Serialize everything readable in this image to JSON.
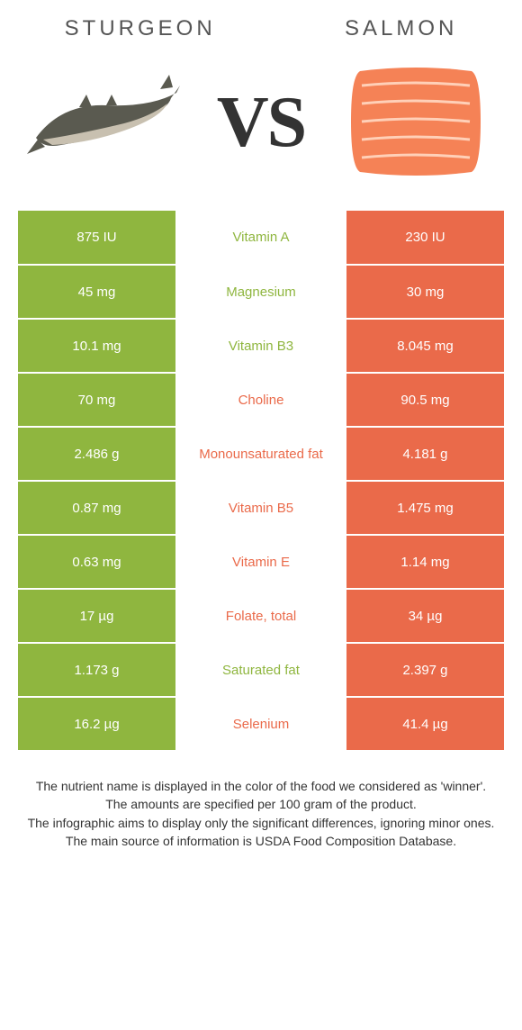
{
  "left_food": {
    "title": "STURGEON",
    "color": "#8fb63f"
  },
  "right_food": {
    "title": "SALMON",
    "color": "#ea6a4a"
  },
  "vs_label_v": "V",
  "vs_label_s": "S",
  "label_color_left": "#8fb63f",
  "label_color_right": "#ea6a4a",
  "row_text_color": "#ffffff",
  "rows": [
    {
      "left": "875 IU",
      "label": "Vitamin A",
      "right": "230 IU",
      "winner": "left"
    },
    {
      "left": "45 mg",
      "label": "Magnesium",
      "right": "30 mg",
      "winner": "left"
    },
    {
      "left": "10.1 mg",
      "label": "Vitamin B3",
      "right": "8.045 mg",
      "winner": "left"
    },
    {
      "left": "70 mg",
      "label": "Choline",
      "right": "90.5 mg",
      "winner": "right"
    },
    {
      "left": "2.486 g",
      "label": "Monounsaturated fat",
      "right": "4.181 g",
      "winner": "right"
    },
    {
      "left": "0.87 mg",
      "label": "Vitamin B5",
      "right": "1.475 mg",
      "winner": "right"
    },
    {
      "left": "0.63 mg",
      "label": "Vitamin E",
      "right": "1.14 mg",
      "winner": "right"
    },
    {
      "left": "17 µg",
      "label": "Folate, total",
      "right": "34 µg",
      "winner": "right"
    },
    {
      "left": "1.173 g",
      "label": "Saturated fat",
      "right": "2.397 g",
      "winner": "left"
    },
    {
      "left": "16.2 µg",
      "label": "Selenium",
      "right": "41.4 µg",
      "winner": "right"
    }
  ],
  "footer_lines": [
    "The nutrient name is displayed in the color of the food we considered as 'winner'.",
    "The amounts are specified per 100 gram of the product.",
    "The infographic aims to display only the significant differences, ignoring minor ones.",
    "The main source of information is USDA Food Composition Database."
  ],
  "illustration": {
    "sturgeon_body": "#5a5a50",
    "sturgeon_belly": "#c8c0b0",
    "salmon_fill": "#f58256",
    "salmon_lines": "#ffd0b8"
  }
}
